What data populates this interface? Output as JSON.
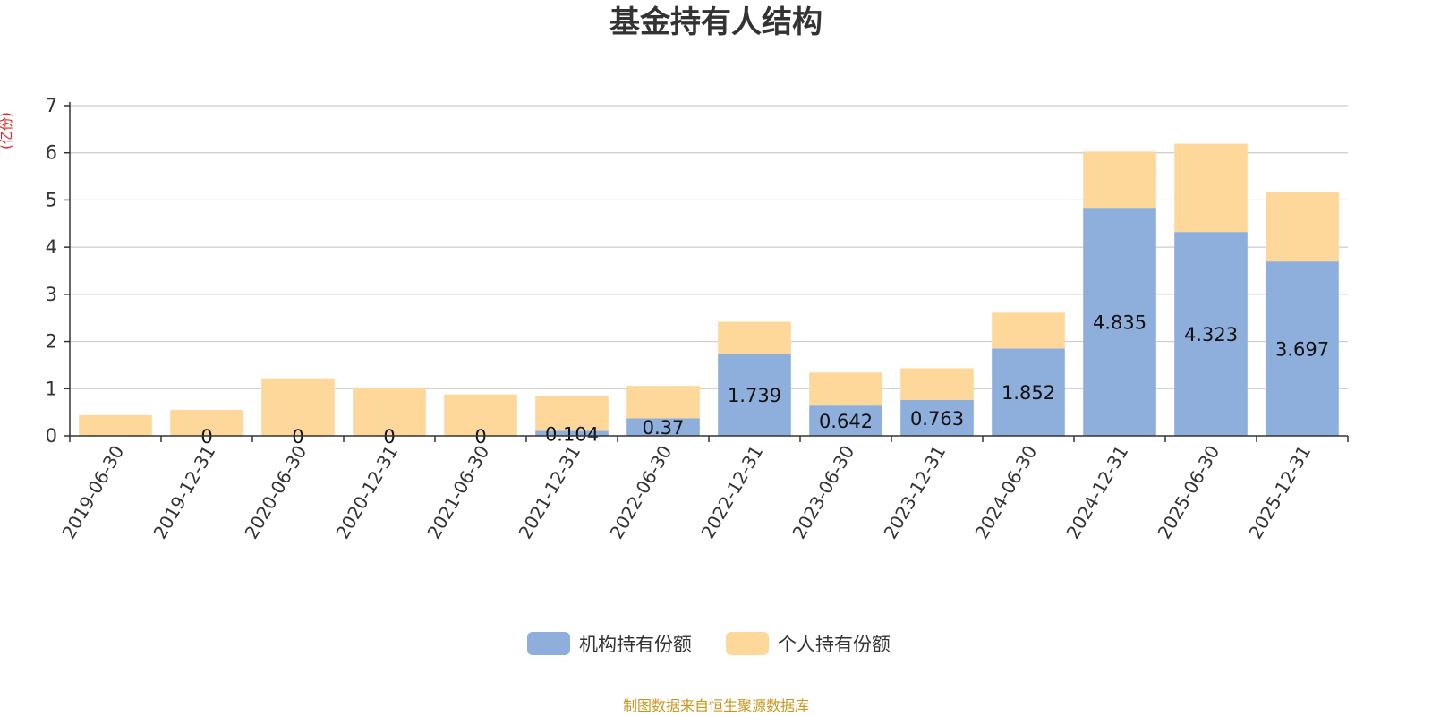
{
  "chart_data": {
    "type": "bar",
    "stacked": true,
    "title": "基金持有人结构",
    "unit_label": "(亿份)",
    "ylim": [
      0,
      7
    ],
    "yticks": [
      0,
      1,
      2,
      3,
      4,
      5,
      6,
      7
    ],
    "grid": true,
    "legend_position": "bottom",
    "categories": [
      "2019-06-30",
      "2019-12-31",
      "2020-06-30",
      "2020-12-31",
      "2021-06-30",
      "2021-12-31",
      "2022-06-30",
      "2022-12-31",
      "2023-06-30",
      "2023-12-31",
      "2024-06-30",
      "2024-12-31",
      "2025-06-30",
      "2025-12-31"
    ],
    "series": [
      {
        "name": "机构持有份额",
        "color": "#8eaedb",
        "values": [
          0,
          0,
          0,
          0,
          0,
          0.104,
          0.37,
          1.739,
          0.642,
          0.763,
          1.852,
          4.835,
          4.323,
          3.697
        ],
        "labels": [
          "",
          "0",
          "0",
          "0",
          "0",
          "0.104",
          "0.37",
          "1.739",
          "0.642",
          "0.763",
          "1.852",
          "4.835",
          "4.323",
          "3.697"
        ]
      },
      {
        "name": "个人持有份额",
        "color": "#fdd89a",
        "values": [
          0.44,
          0.55,
          1.22,
          1.02,
          0.88,
          0.74,
          0.69,
          0.68,
          0.7,
          0.67,
          0.76,
          1.19,
          1.87,
          1.48
        ]
      }
    ],
    "source": "制图数据来自恒生聚源数据库"
  }
}
